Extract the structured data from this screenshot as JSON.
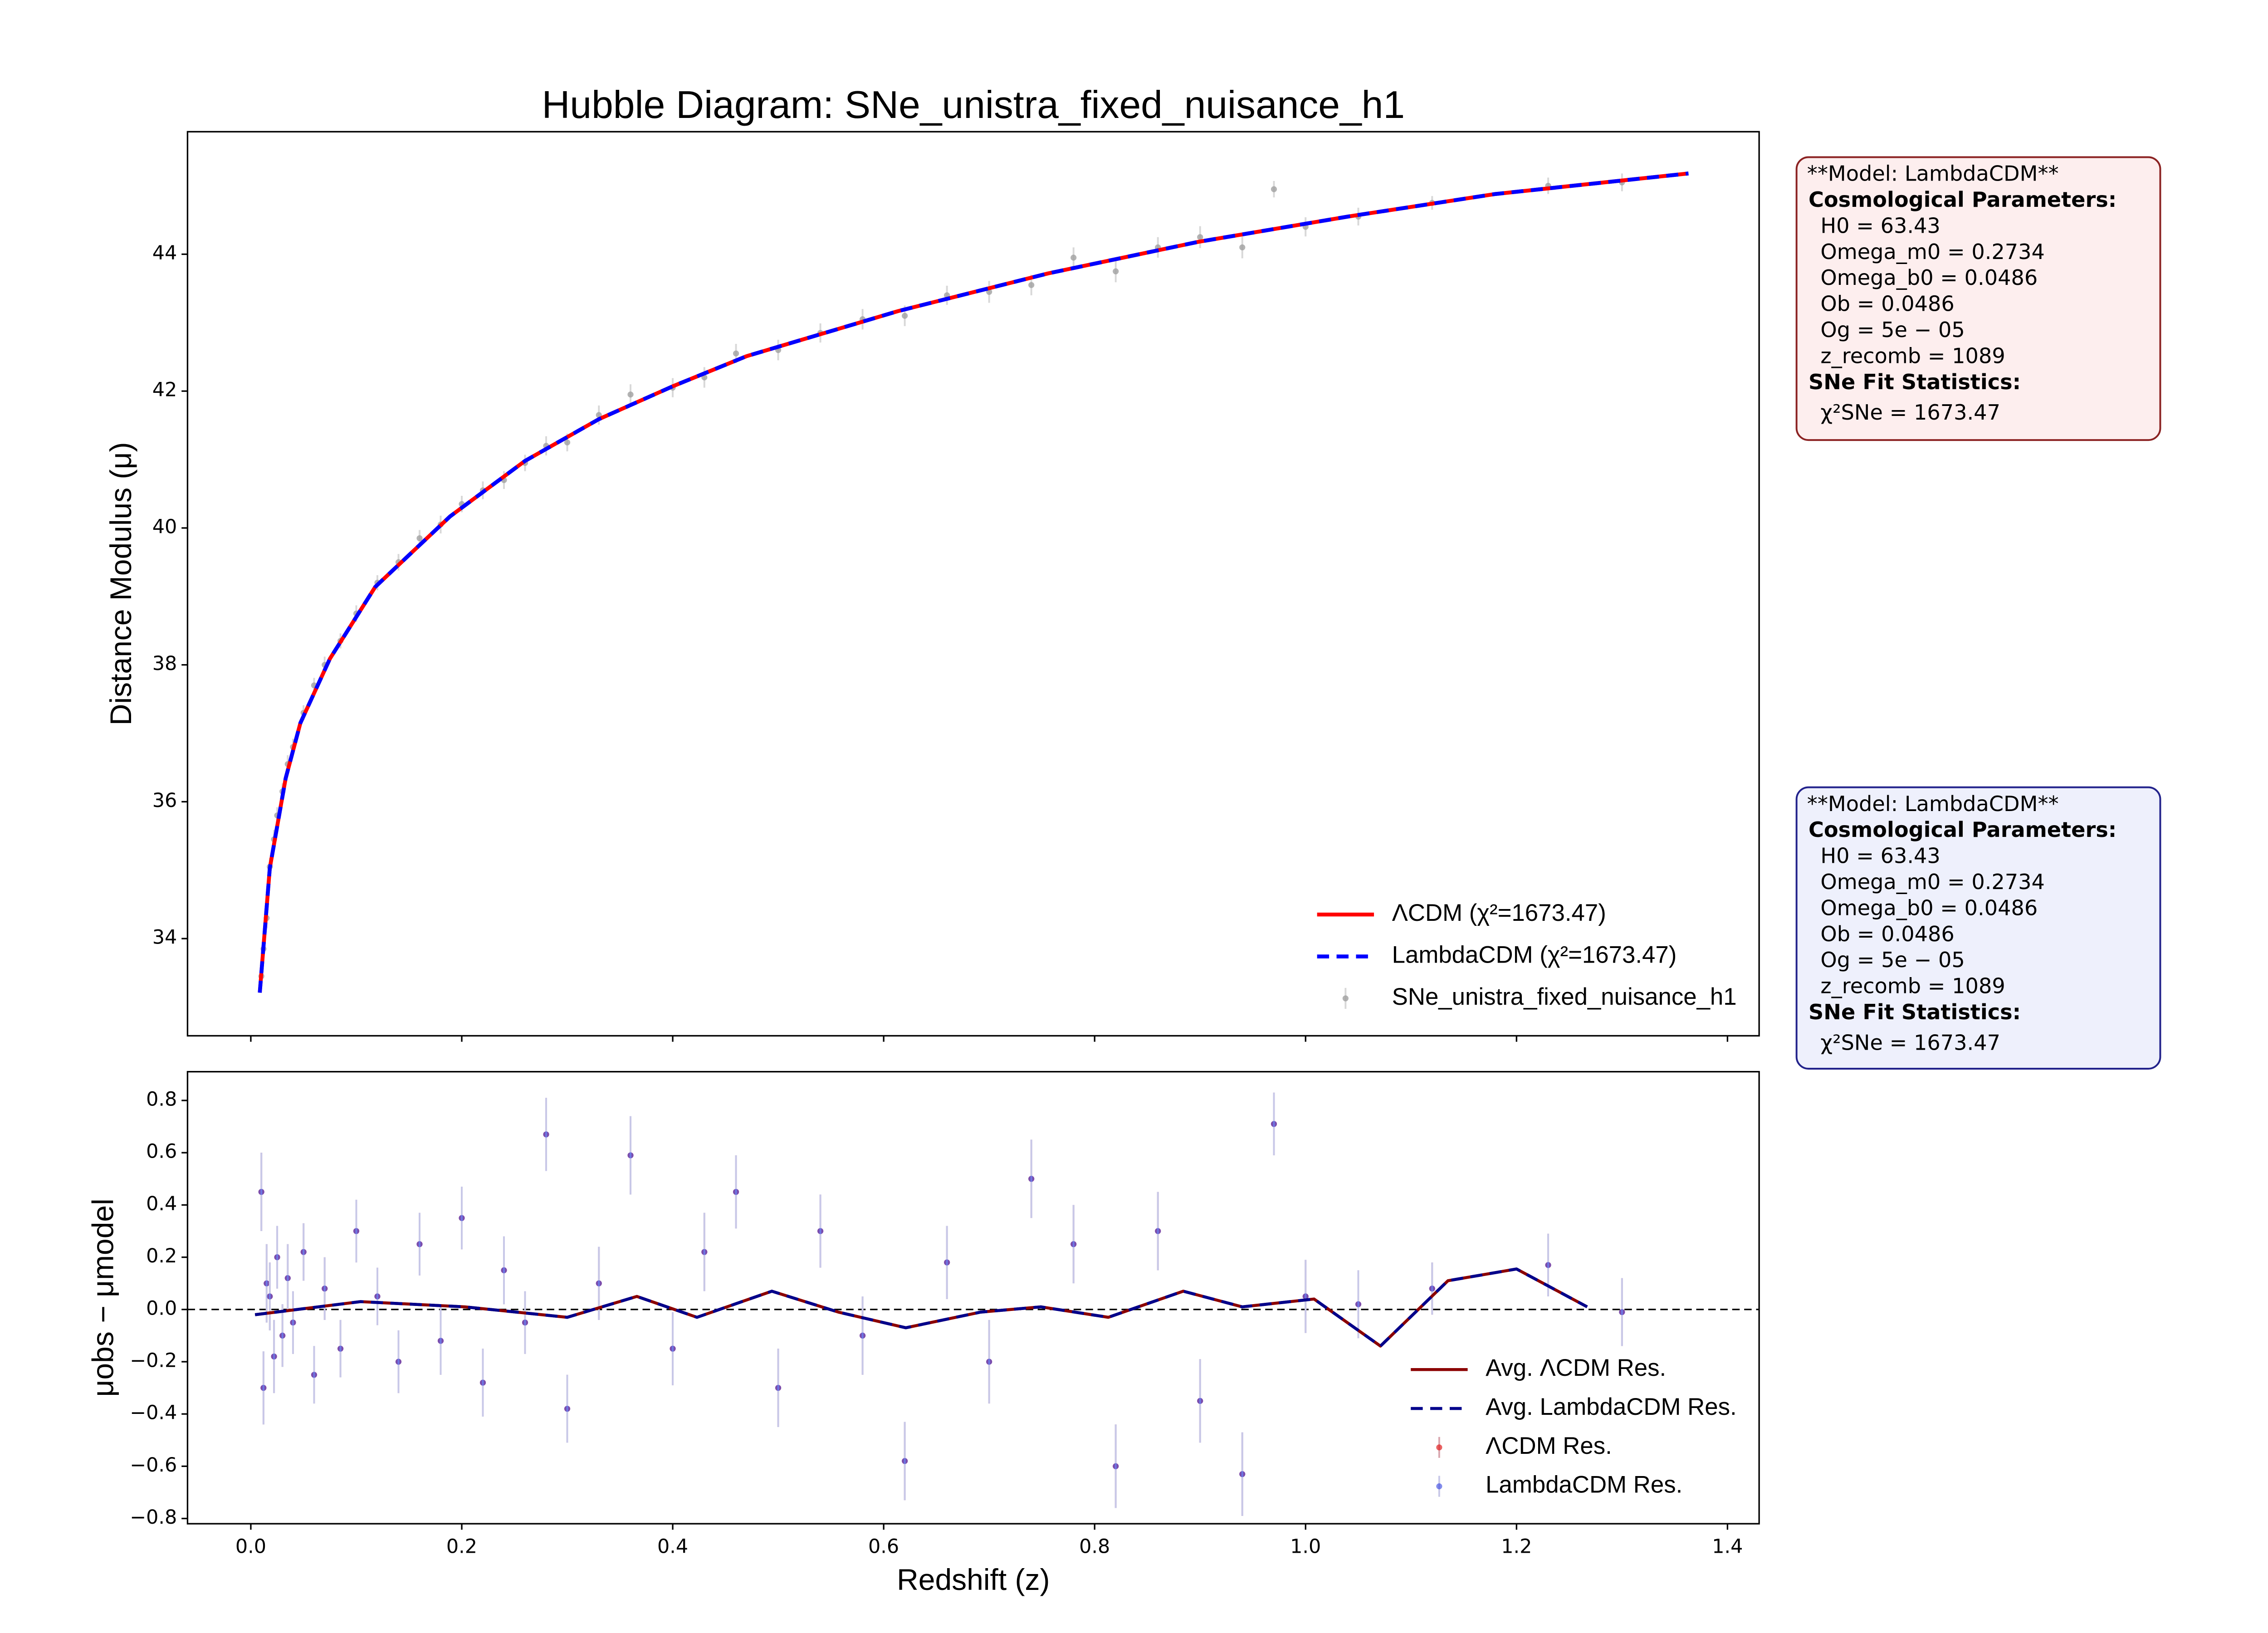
{
  "chart_data": [
    {
      "type": "line",
      "title": "Hubble Diagram: SNe_unistra_fixed_nuisance_h1",
      "ylabel": "Distance Modulus (μ)",
      "xlim": [
        -0.06,
        1.43
      ],
      "ylim": [
        32.58,
        45.79
      ],
      "xticks": [
        0,
        0.2,
        0.4,
        0.6,
        0.8,
        1,
        1.2,
        1.4
      ],
      "show_xtick_labels": false,
      "yticks": [
        34,
        36,
        38,
        40,
        42,
        44
      ],
      "legend": "lower right",
      "series": [
        {
          "name": "ΛCDM (χ²=1673.47)",
          "style": "line",
          "color": "#ff0000",
          "x": [
            0.0085,
            0.018,
            0.033,
            0.047,
            0.075,
            0.118,
            0.189,
            0.26,
            0.33,
            0.4,
            0.47,
            0.614,
            0.756,
            0.898,
            1.04,
            1.18,
            1.363
          ],
          "values": [
            33.21,
            35.03,
            36.34,
            37.15,
            38.09,
            39.14,
            40.17,
            40.98,
            41.59,
            42.07,
            42.51,
            43.17,
            43.72,
            44.18,
            44.55,
            44.88,
            45.18
          ]
        },
        {
          "name": "LambdaCDM (χ²=1673.47)",
          "style": "dashed",
          "color": "#0000ff",
          "x": [
            0.0085,
            0.018,
            0.033,
            0.047,
            0.075,
            0.118,
            0.189,
            0.26,
            0.33,
            0.4,
            0.47,
            0.614,
            0.756,
            0.898,
            1.04,
            1.18,
            1.363
          ],
          "values": [
            33.21,
            35.03,
            36.34,
            37.15,
            38.09,
            39.14,
            40.17,
            40.98,
            41.59,
            42.07,
            42.51,
            43.17,
            43.72,
            44.18,
            44.55,
            44.88,
            45.18
          ]
        },
        {
          "name": "SNe_unistra_fixed_nuisance_h1",
          "style": "errorbar",
          "color": "#a0a0a0",
          "ecolor": "#d8d8d8",
          "alpha": 0.8,
          "x": [
            0.01,
            0.012,
            0.015,
            0.018,
            0.022,
            0.025,
            0.03,
            0.035,
            0.04,
            0.05,
            0.06,
            0.07,
            0.085,
            0.1,
            0.12,
            0.14,
            0.16,
            0.18,
            0.2,
            0.22,
            0.24,
            0.26,
            0.28,
            0.3,
            0.33,
            0.36,
            0.4,
            0.43,
            0.46,
            0.5,
            0.54,
            0.58,
            0.62,
            0.66,
            0.7,
            0.74,
            0.78,
            0.82,
            0.86,
            0.9,
            0.94,
            0.97,
            1.0,
            1.05,
            1.12,
            1.23,
            1.3
          ],
          "values": [
            33.45,
            33.85,
            34.3,
            35.05,
            35.45,
            35.8,
            36.15,
            36.55,
            36.8,
            37.3,
            37.7,
            38.0,
            38.35,
            38.75,
            39.2,
            39.5,
            39.85,
            40.05,
            40.35,
            40.55,
            40.7,
            40.95,
            41.2,
            41.25,
            41.65,
            41.95,
            42.05,
            42.2,
            42.55,
            42.6,
            42.85,
            43.05,
            43.1,
            43.4,
            43.45,
            43.55,
            43.95,
            43.75,
            44.1,
            44.25,
            44.1,
            44.95,
            44.4,
            44.55,
            44.75,
            45.0,
            45.05
          ],
          "errors": [
            0.15,
            0.14,
            0.15,
            0.13,
            0.14,
            0.12,
            0.12,
            0.13,
            0.12,
            0.11,
            0.11,
            0.12,
            0.11,
            0.12,
            0.11,
            0.12,
            0.12,
            0.13,
            0.12,
            0.13,
            0.13,
            0.12,
            0.14,
            0.13,
            0.14,
            0.15,
            0.14,
            0.15,
            0.14,
            0.15,
            0.14,
            0.15,
            0.15,
            0.14,
            0.16,
            0.15,
            0.15,
            0.16,
            0.15,
            0.16,
            0.16,
            0.12,
            0.14,
            0.13,
            0.1,
            0.12,
            0.13
          ]
        }
      ]
    },
    {
      "type": "line",
      "xlabel": "Redshift (z)",
      "ylabel": "μobs − μmodel",
      "xlim": [
        -0.06,
        1.43
      ],
      "ylim": [
        -0.82,
        0.91
      ],
      "xticks": [
        {
          "value": 0,
          "label": "0.0"
        },
        0.2,
        0.4,
        0.6,
        0.8,
        {
          "value": 1,
          "label": "1.0"
        },
        1.2,
        1.4
      ],
      "show_xtick_labels": true,
      "yticks": [
        {
          "value": -0.8,
          "label": "−0.8"
        },
        {
          "value": -0.6,
          "label": "−0.6"
        },
        {
          "value": -0.4,
          "label": "−0.4"
        },
        {
          "value": -0.2,
          "label": "−0.2"
        },
        {
          "value": 0,
          "label": "0.0"
        },
        0.2,
        0.4,
        0.6,
        0.8
      ],
      "zero_line": true,
      "legend": "lower right",
      "series": [
        {
          "name": "Avg. ΛCDM Res.",
          "style": "line",
          "color": "#8b0000",
          "x": [
            0.004,
            0.104,
            0.203,
            0.3,
            0.366,
            0.423,
            0.494,
            0.557,
            0.621,
            0.692,
            0.749,
            0.813,
            0.884,
            0.94,
            1.008,
            1.071,
            1.135,
            1.2,
            1.267
          ],
          "values": [
            -0.02,
            0.03,
            0.01,
            -0.03,
            0.05,
            -0.03,
            0.07,
            -0.01,
            -0.07,
            -0.01,
            0.01,
            -0.03,
            0.07,
            0.01,
            0.04,
            -0.14,
            0.11,
            0.155,
            0.01
          ]
        },
        {
          "name": "Avg. LambdaCDM Res.",
          "style": "dashed",
          "color": "#00008b",
          "x": [
            0.004,
            0.104,
            0.203,
            0.3,
            0.366,
            0.423,
            0.494,
            0.557,
            0.621,
            0.692,
            0.749,
            0.813,
            0.884,
            0.94,
            1.008,
            1.071,
            1.135,
            1.2,
            1.267
          ],
          "values": [
            -0.02,
            0.03,
            0.01,
            -0.03,
            0.05,
            -0.03,
            0.07,
            -0.01,
            -0.07,
            -0.01,
            0.01,
            -0.03,
            0.07,
            0.01,
            0.04,
            -0.14,
            0.11,
            0.155,
            0.01
          ]
        },
        {
          "name": "ΛCDM Res.",
          "style": "errorbar",
          "color": "#e02020",
          "ecolor": "#d8a8b0",
          "alpha": 0.7,
          "x": [
            0.01,
            0.012,
            0.015,
            0.018,
            0.022,
            0.025,
            0.03,
            0.035,
            0.04,
            0.05,
            0.06,
            0.07,
            0.085,
            0.1,
            0.12,
            0.14,
            0.16,
            0.18,
            0.2,
            0.22,
            0.24,
            0.26,
            0.28,
            0.3,
            0.33,
            0.36,
            0.4,
            0.43,
            0.46,
            0.5,
            0.54,
            0.58,
            0.62,
            0.66,
            0.7,
            0.74,
            0.78,
            0.82,
            0.86,
            0.9,
            0.94,
            0.97,
            1.0,
            1.05,
            1.12,
            1.23,
            1.3
          ],
          "values": [
            0.45,
            -0.3,
            0.1,
            0.05,
            -0.18,
            0.2,
            -0.1,
            0.12,
            -0.05,
            0.22,
            -0.25,
            0.08,
            -0.15,
            0.3,
            0.05,
            -0.2,
            0.25,
            -0.12,
            0.35,
            -0.28,
            0.15,
            -0.05,
            0.67,
            -0.38,
            0.1,
            0.59,
            -0.15,
            0.22,
            0.45,
            -0.3,
            0.3,
            -0.1,
            -0.58,
            0.18,
            -0.2,
            0.5,
            0.25,
            -0.6,
            0.3,
            -0.35,
            -0.63,
            0.71,
            0.05,
            0.02,
            0.08,
            0.17,
            -0.01
          ],
          "errors": [
            0.15,
            0.14,
            0.15,
            0.13,
            0.14,
            0.12,
            0.12,
            0.13,
            0.12,
            0.11,
            0.11,
            0.12,
            0.11,
            0.12,
            0.11,
            0.12,
            0.12,
            0.13,
            0.12,
            0.13,
            0.13,
            0.12,
            0.14,
            0.13,
            0.14,
            0.15,
            0.14,
            0.15,
            0.14,
            0.15,
            0.14,
            0.15,
            0.15,
            0.14,
            0.16,
            0.15,
            0.15,
            0.16,
            0.15,
            0.16,
            0.16,
            0.12,
            0.14,
            0.13,
            0.1,
            0.12,
            0.13
          ]
        },
        {
          "name": "LambdaCDM Res.",
          "style": "errorbar",
          "color": "#3040e0",
          "ecolor": "#c8c8e8",
          "alpha": 0.6,
          "x": [
            0.01,
            0.012,
            0.015,
            0.018,
            0.022,
            0.025,
            0.03,
            0.035,
            0.04,
            0.05,
            0.06,
            0.07,
            0.085,
            0.1,
            0.12,
            0.14,
            0.16,
            0.18,
            0.2,
            0.22,
            0.24,
            0.26,
            0.28,
            0.3,
            0.33,
            0.36,
            0.4,
            0.43,
            0.46,
            0.5,
            0.54,
            0.58,
            0.62,
            0.66,
            0.7,
            0.74,
            0.78,
            0.82,
            0.86,
            0.9,
            0.94,
            0.97,
            1.0,
            1.05,
            1.12,
            1.23,
            1.3
          ],
          "values": [
            0.45,
            -0.3,
            0.1,
            0.05,
            -0.18,
            0.2,
            -0.1,
            0.12,
            -0.05,
            0.22,
            -0.25,
            0.08,
            -0.15,
            0.3,
            0.05,
            -0.2,
            0.25,
            -0.12,
            0.35,
            -0.28,
            0.15,
            -0.05,
            0.67,
            -0.38,
            0.1,
            0.59,
            -0.15,
            0.22,
            0.45,
            -0.3,
            0.3,
            -0.1,
            -0.58,
            0.18,
            -0.2,
            0.5,
            0.25,
            -0.6,
            0.3,
            -0.35,
            -0.63,
            0.71,
            0.05,
            0.02,
            0.08,
            0.17,
            -0.01
          ],
          "errors": [
            0.15,
            0.14,
            0.15,
            0.13,
            0.14,
            0.12,
            0.12,
            0.13,
            0.12,
            0.11,
            0.11,
            0.12,
            0.11,
            0.12,
            0.11,
            0.12,
            0.12,
            0.13,
            0.12,
            0.13,
            0.13,
            0.12,
            0.14,
            0.13,
            0.14,
            0.15,
            0.14,
            0.15,
            0.14,
            0.15,
            0.14,
            0.15,
            0.15,
            0.14,
            0.16,
            0.15,
            0.15,
            0.16,
            0.15,
            0.16,
            0.16,
            0.12,
            0.14,
            0.13,
            0.1,
            0.12,
            0.13
          ]
        }
      ]
    }
  ],
  "annotations": [
    {
      "fill": "#fdeeee",
      "edge": "#8b2222",
      "lines": [
        {
          "text": "**Model: LambdaCDM**"
        },
        {
          "text": "Cosmological Parameters:",
          "bold": true
        },
        {
          "text": "H0 = 63.43"
        },
        {
          "text": "Omega_m0 = 0.2734"
        },
        {
          "text": "Omega_b0 = 0.0486"
        },
        {
          "text": "Ob = 0.0486"
        },
        {
          "text": "Og = 5e − 05"
        },
        {
          "text": "z_recomb = 1089"
        },
        {
          "text": "SNe Fit Statistics:",
          "bold": true
        },
        {
          "text": "χ²SNe = 1673.47"
        }
      ]
    },
    {
      "fill": "#eef0fc",
      "edge": "#22228b",
      "lines": [
        {
          "text": "**Model: LambdaCDM**"
        },
        {
          "text": "Cosmological Parameters:",
          "bold": true
        },
        {
          "text": "H0 = 63.43"
        },
        {
          "text": "Omega_m0 = 0.2734"
        },
        {
          "text": "Omega_b0 = 0.0486"
        },
        {
          "text": "Ob = 0.0486"
        },
        {
          "text": "Og = 5e − 05"
        },
        {
          "text": "z_recomb = 1089"
        },
        {
          "text": "SNe Fit Statistics:",
          "bold": true
        },
        {
          "text": "χ²SNe = 1673.47"
        }
      ]
    }
  ]
}
